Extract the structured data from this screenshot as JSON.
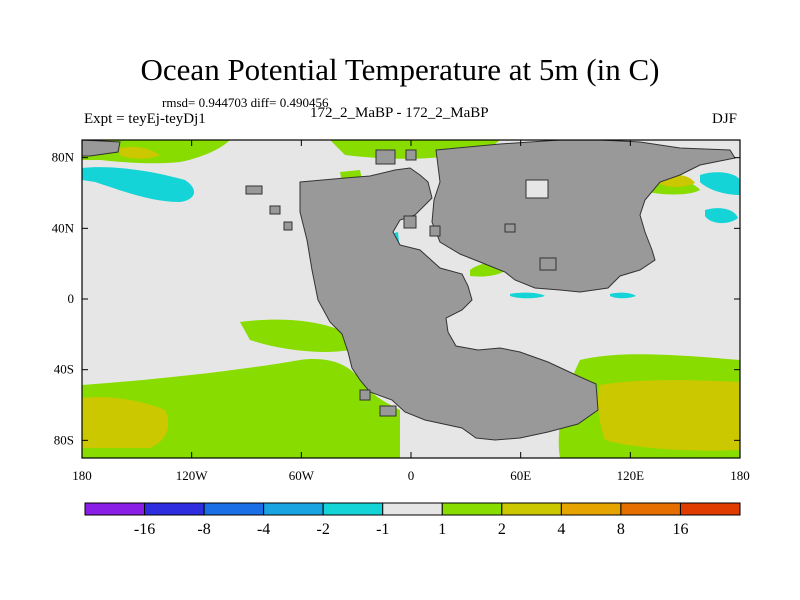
{
  "chart_data": {
    "type": "heatmap",
    "title": "Ocean Potential Temperature at 5m (in C)",
    "stats_line": "rmsd= 0.944703 diff= 0.490456",
    "left_label": "Expt = teyEj-teyDj1",
    "center_label": "172_2_MaBP - 172_2_MaBP",
    "right_label": "DJF",
    "xlabel": "",
    "ylabel": "",
    "x_ticks": [
      {
        "value": -180,
        "label": "180"
      },
      {
        "value": -120,
        "label": "120W"
      },
      {
        "value": -60,
        "label": "60W"
      },
      {
        "value": 0,
        "label": "0"
      },
      {
        "value": 60,
        "label": "60E"
      },
      {
        "value": 120,
        "label": "120E"
      },
      {
        "value": 180,
        "label": "180"
      }
    ],
    "y_ticks": [
      {
        "value": 80,
        "label": "80N"
      },
      {
        "value": 40,
        "label": "40N"
      },
      {
        "value": 0,
        "label": "0"
      },
      {
        "value": -40,
        "label": "40S"
      },
      {
        "value": -80,
        "label": "80S"
      }
    ],
    "xlim": [
      -180,
      180
    ],
    "ylim": [
      -90,
      90
    ],
    "colorbar": {
      "boundaries": [
        -16,
        -8,
        -4,
        -2,
        -1,
        1,
        2,
        4,
        8,
        16
      ],
      "labels": [
        "-16",
        "-8",
        "-4",
        "-2",
        "-1",
        "1",
        "2",
        "4",
        "8",
        "16"
      ],
      "colors": [
        "#8a1ee6",
        "#2e2ee0",
        "#1a6ee6",
        "#18a4e0",
        "#14d4d8",
        "#e6e6e6",
        "#88dc00",
        "#ccc800",
        "#e6a400",
        "#e66e00",
        "#e03c00"
      ]
    },
    "land_color": "#999999",
    "ocean_neutral_color": "#e6e6e6"
  }
}
